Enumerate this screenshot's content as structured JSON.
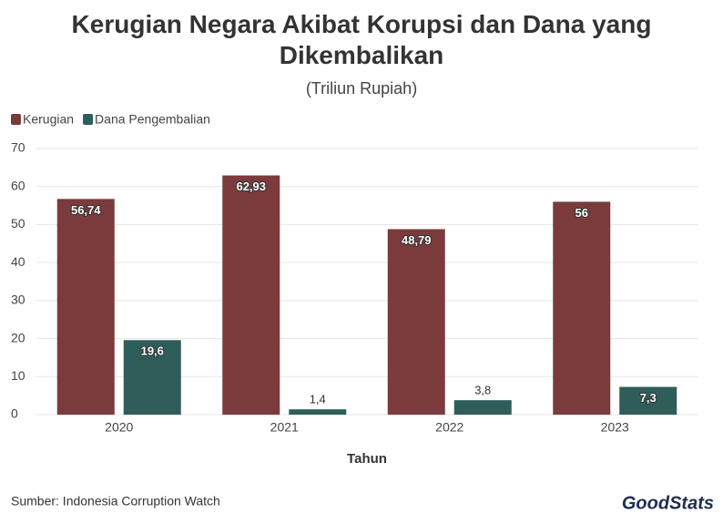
{
  "chart_data": {
    "type": "bar",
    "title": "Kerugian Negara Akibat Korupsi dan Dana yang Dikembalikan",
    "subtitle": "(Triliun Rupiah)",
    "x_label": "Tahun",
    "categories": [
      "2020",
      "2021",
      "2022",
      "2023"
    ],
    "series": [
      {
        "name": "Kerugian",
        "color": "#7b3a3c",
        "values": [
          56.74,
          62.93,
          48.79,
          56
        ],
        "value_labels": [
          "56,74",
          "62,93",
          "48,79",
          "56"
        ]
      },
      {
        "name": "Dana Pengembalian",
        "color": "#2f5e5a",
        "values": [
          19.6,
          1.4,
          3.8,
          7.3
        ],
        "value_labels": [
          "19,6",
          "1,4",
          "3,8",
          "7,3"
        ]
      }
    ],
    "ylim": [
      0,
      70
    ],
    "yticks": [
      0,
      10,
      20,
      30,
      40,
      50,
      60,
      70
    ],
    "grid": true,
    "legend": "top-left",
    "source": "Sumber: Indonesia Corruption Watch",
    "brand": "GoodStats"
  }
}
